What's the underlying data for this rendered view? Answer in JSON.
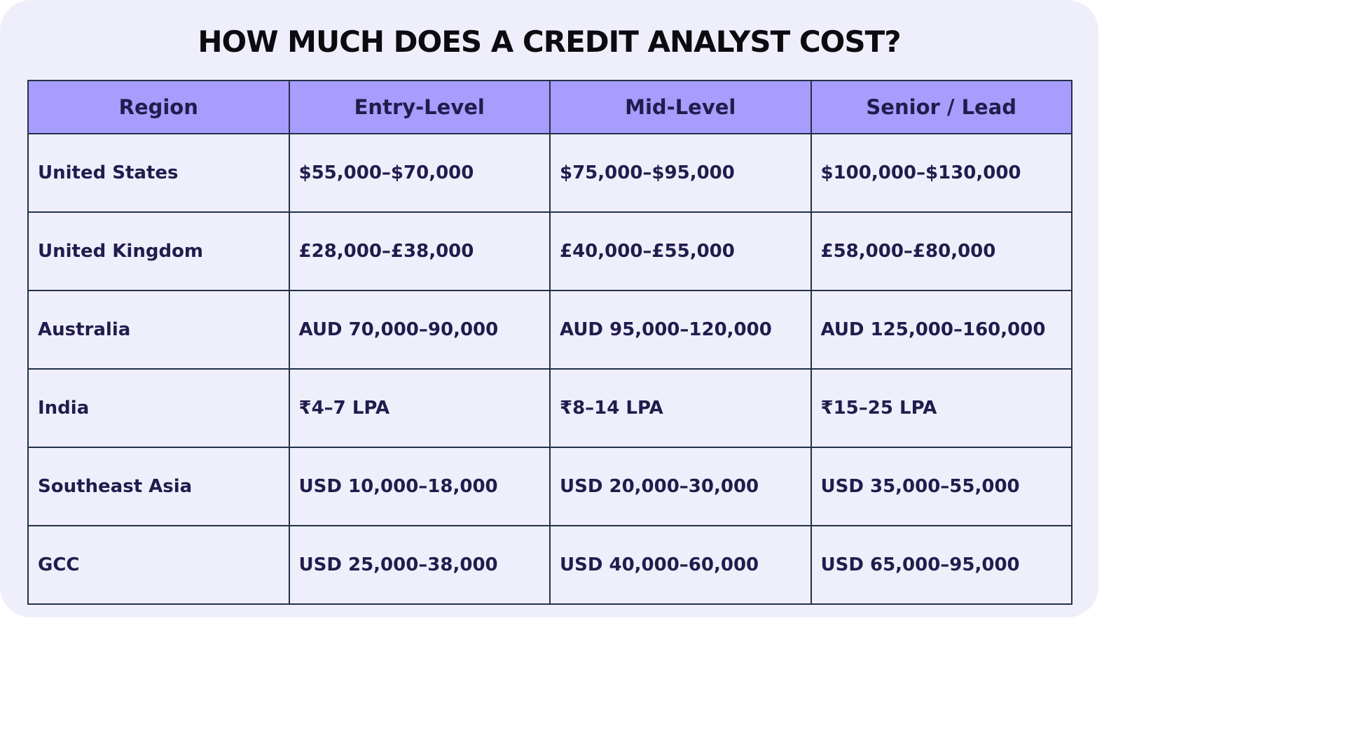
{
  "title": "HOW MUCH DOES A CREDIT ANALYST COST?",
  "colors": {
    "background": "#efeffb",
    "header_fill": "#a89cfd",
    "border": "#233148",
    "text": "#221c4d"
  },
  "table": {
    "headers": [
      "Region",
      "Entry-Level",
      "Mid-Level",
      "Senior / Lead"
    ],
    "rows": [
      [
        "United States",
        "$55,000–$70,000",
        "$75,000–$95,000",
        "$100,000–$130,000"
      ],
      [
        "United Kingdom",
        "£28,000–£38,000",
        "£40,000–£55,000",
        "£58,000–£80,000"
      ],
      [
        "Australia",
        "AUD 70,000–90,000",
        "AUD 95,000–120,000",
        "AUD 125,000–160,000"
      ],
      [
        "India",
        "₹4–7 LPA",
        "₹8–14 LPA",
        "₹15–25 LPA"
      ],
      [
        "Southeast Asia",
        "USD 10,000–18,000",
        "USD 20,000–30,000",
        "USD 35,000–55,000"
      ],
      [
        "GCC",
        "USD 25,000–38,000",
        "USD 40,000–60,000",
        "USD 65,000–95,000"
      ]
    ]
  }
}
